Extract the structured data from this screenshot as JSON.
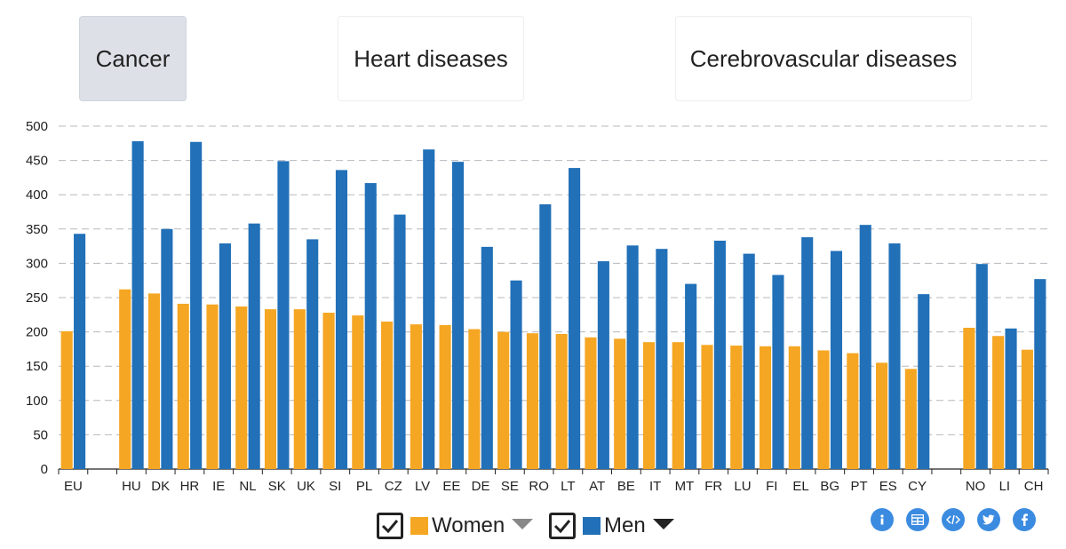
{
  "tabs": [
    {
      "label": "Cancer",
      "active": true
    },
    {
      "label": "Heart diseases",
      "active": false
    },
    {
      "label": "Cerebrovascular diseases",
      "active": false
    }
  ],
  "legend": {
    "women_label": "Women",
    "men_label": "Men"
  },
  "colors": {
    "women": "#f5a623",
    "men": "#2170b8",
    "women_toggle": "#888888",
    "men_toggle": "#222222",
    "icon": "#3b8be0"
  },
  "toolbar_icons": [
    "info-icon",
    "table-icon",
    "embed-code-icon",
    "twitter-icon",
    "facebook-icon"
  ],
  "chart_data": {
    "type": "bar",
    "ylim": [
      0,
      500
    ],
    "yticks": [
      0,
      50,
      100,
      150,
      200,
      250,
      300,
      350,
      400,
      450,
      500
    ],
    "grid": true,
    "categories": [
      "EU",
      "HU",
      "DK",
      "HR",
      "IE",
      "NL",
      "SK",
      "UK",
      "SI",
      "PL",
      "CZ",
      "LV",
      "EE",
      "DE",
      "SE",
      "RO",
      "LT",
      "AT",
      "BE",
      "IT",
      "MT",
      "FR",
      "LU",
      "FI",
      "EL",
      "BG",
      "PT",
      "ES",
      "CY",
      "NO",
      "LI",
      "CH"
    ],
    "series": [
      {
        "name": "Women",
        "values": [
          201,
          262,
          256,
          241,
          240,
          237,
          233,
          233,
          228,
          224,
          215,
          211,
          210,
          204,
          200,
          198,
          197,
          192,
          190,
          185,
          185,
          181,
          180,
          179,
          179,
          173,
          169,
          155,
          146,
          206,
          194,
          174
        ]
      },
      {
        "name": "Men",
        "values": [
          343,
          478,
          350,
          477,
          329,
          358,
          449,
          335,
          436,
          417,
          371,
          466,
          448,
          324,
          275,
          386,
          439,
          303,
          326,
          321,
          270,
          333,
          314,
          283,
          338,
          318,
          356,
          329,
          255,
          299,
          205,
          277
        ]
      }
    ]
  }
}
